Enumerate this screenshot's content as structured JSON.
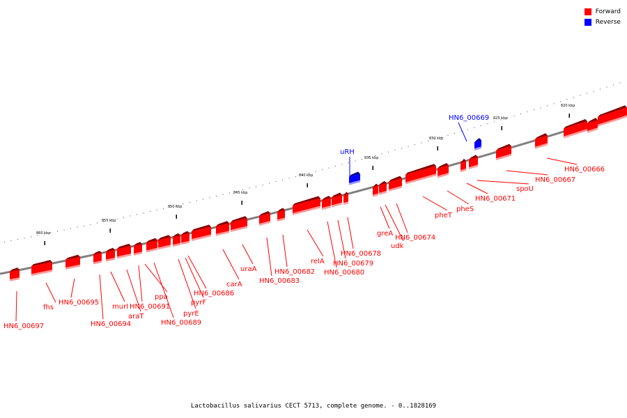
{
  "caption": "Lactobacillus salivarius CECT 5713, complete genome. - 0..1828169",
  "legend": [
    {
      "label": "Forward",
      "color": "#ff0000"
    },
    {
      "label": "Reverse",
      "color": "#0000ff"
    }
  ],
  "colors": {
    "forward": "#ff0000",
    "forward_top": "#8b0000",
    "forward_shadow": "#ff9a9a",
    "reverse": "#0000ff",
    "reverse_top": "#00008b",
    "reverse_shadow": "#9a9aff",
    "backbone": "#808080"
  },
  "ticks": [
    "820 kbp",
    "825 kbp",
    "830 kbp",
    "835 kbp",
    "840 kbp",
    "845 kbp",
    "850 kbp",
    "855 kbp",
    "860 kbp"
  ],
  "genes": [
    {
      "name": "HN6_00697",
      "strand": "forward"
    },
    {
      "name": "fhs",
      "strand": "forward"
    },
    {
      "name": "HN6_00695",
      "strand": "forward"
    },
    {
      "name": "HN6_00694",
      "strand": "forward"
    },
    {
      "name": "murI",
      "strand": "forward"
    },
    {
      "name": "araT",
      "strand": "forward"
    },
    {
      "name": "HN6_00691",
      "strand": "forward"
    },
    {
      "name": "ppa",
      "strand": "forward"
    },
    {
      "name": "HN6_00689",
      "strand": "forward"
    },
    {
      "name": "pyrE",
      "strand": "forward"
    },
    {
      "name": "pyrF",
      "strand": "forward"
    },
    {
      "name": "HN6_00686",
      "strand": "forward"
    },
    {
      "name": "carA",
      "strand": "forward"
    },
    {
      "name": "uraA",
      "strand": "forward"
    },
    {
      "name": "HN6_00683",
      "strand": "forward"
    },
    {
      "name": "HN6_00682",
      "strand": "forward"
    },
    {
      "name": "relA",
      "strand": "forward"
    },
    {
      "name": "HN6_00680",
      "strand": "forward"
    },
    {
      "name": "HN6_00679",
      "strand": "forward"
    },
    {
      "name": "HN6_00678",
      "strand": "forward"
    },
    {
      "name": "uRH",
      "strand": "reverse"
    },
    {
      "name": "greA",
      "strand": "forward"
    },
    {
      "name": "udk",
      "strand": "forward"
    },
    {
      "name": "HN6_00674",
      "strand": "forward"
    },
    {
      "name": "pheT",
      "strand": "forward"
    },
    {
      "name": "pheS",
      "strand": "forward"
    },
    {
      "name": "HN6_00671",
      "strand": "forward"
    },
    {
      "name": "HN6_00669",
      "strand": "reverse"
    },
    {
      "name": "spoU",
      "strand": "forward"
    },
    {
      "name": "HN6_00667",
      "strand": "forward"
    },
    {
      "name": "HN6_00666",
      "strand": "forward"
    }
  ]
}
